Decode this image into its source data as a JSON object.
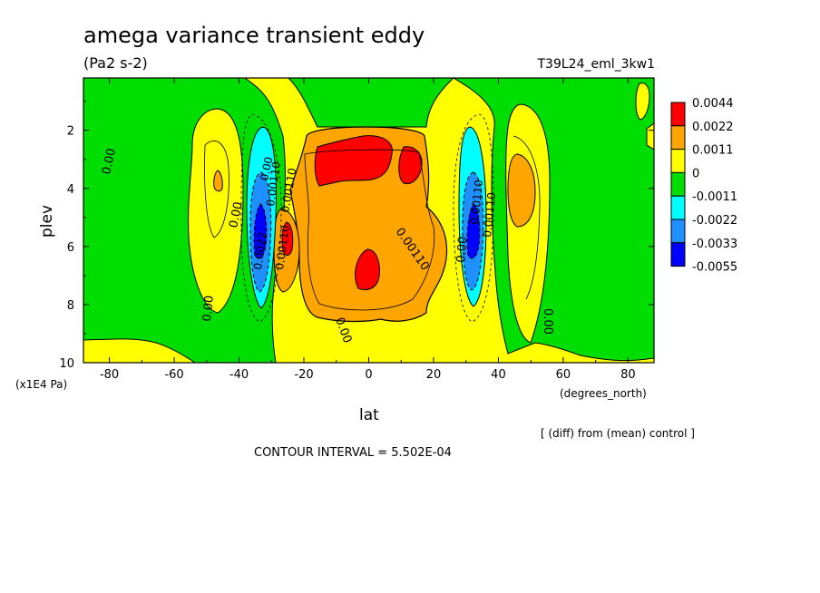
{
  "chart_data": {
    "type": "heatmap",
    "title": "amega variance transient eddy",
    "units": "(Pa2 s-2)",
    "experiment": "T39L24_eml_3kw1",
    "xlabel": "lat",
    "xunits": "(degrees_north)",
    "ylabel": "plev",
    "yunits": "(x1E4 Pa)",
    "xlim": [
      -88,
      88
    ],
    "ylim": [
      10,
      0.2
    ],
    "x_ticks": [
      -80,
      -60,
      -40,
      -20,
      0,
      20,
      40,
      60,
      80
    ],
    "y_ticks": [
      2,
      4,
      6,
      8,
      10
    ],
    "x_tick_labels": [
      "-80",
      "-60",
      "-40",
      "-20",
      "0",
      "20",
      "40",
      "60",
      "80"
    ],
    "y_tick_labels": [
      "2",
      "4",
      "6",
      "8",
      "10"
    ],
    "contour_interval_text": "CONTOUR INTERVAL = 5.502E-04",
    "note": "[ (diff) from (mean) control ]",
    "colorbar": {
      "labels": [
        "0.0044",
        "0.0022",
        "0.0011",
        "0",
        "-0.0011",
        "-0.0022",
        "-0.0033",
        "-0.0055"
      ],
      "colors": [
        "#ff0000",
        "#ffa500",
        "#ffff00",
        "#00dd00",
        "#00ffff",
        "#1e90ff",
        "#0000ff"
      ]
    },
    "contour_labels": [
      "0.00",
      "0.00",
      "0.00",
      "0.00",
      "0.00",
      "0.00",
      "0.00",
      "0.00110",
      "0.00110",
      "0.00110",
      "0.00110",
      "0.0022",
      "0.00110",
      "0.00110"
    ],
    "features": [
      {
        "lat": 0,
        "plev": 3.0,
        "level": 0.0044
      },
      {
        "lat": 2,
        "plev": 7.0,
        "level": 0.0044
      },
      {
        "lat": -34,
        "plev": 5.0,
        "level": -0.0055
      },
      {
        "lat": 34,
        "plev": 5.0,
        "level": -0.0055
      },
      {
        "lat": -50,
        "plev": 4.0,
        "level": 0.0011
      },
      {
        "lat": 48,
        "plev": 4.0,
        "level": 0.0011
      }
    ]
  }
}
